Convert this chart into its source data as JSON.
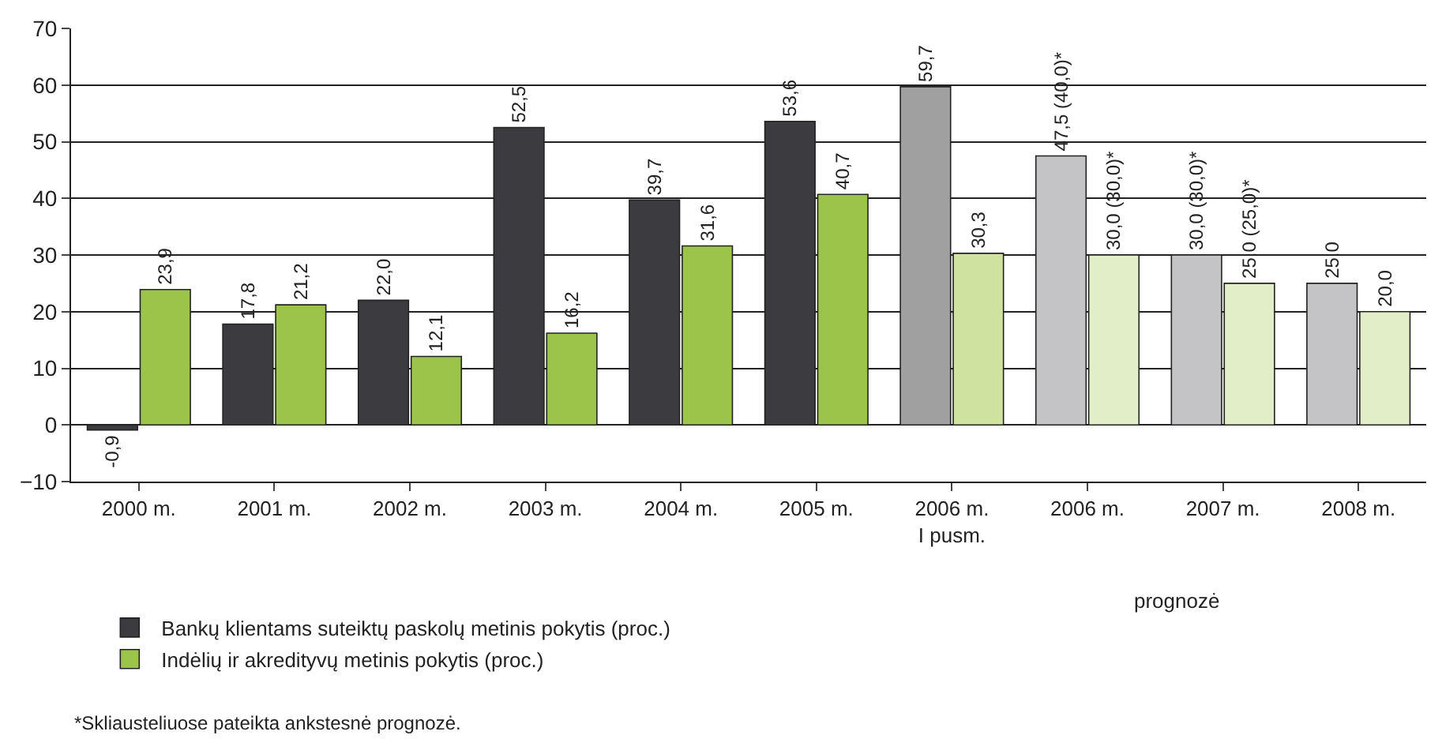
{
  "chart_data": {
    "type": "bar",
    "categories": [
      "2000 m.",
      "2001 m.",
      "2002 m.",
      "2003 m.",
      "2004 m.",
      "2005 m.",
      "2006 m.\nI pusm.",
      "2006 m.",
      "2007 m.",
      "2008 m."
    ],
    "series": [
      {
        "name": "Bankų klientams suteiktų paskolų metinis pokytis (proc.)",
        "colors": [
          "#3c3c40",
          "#3c3c40",
          "#3c3c40",
          "#3c3c40",
          "#3c3c40",
          "#3c3c40",
          "#a0a0a0",
          "#c4c4c6",
          "#c4c4c6",
          "#c4c4c6"
        ],
        "values": [
          -0.9,
          17.8,
          22.0,
          52.5,
          39.7,
          53.6,
          59.7,
          47.5,
          30.0,
          25.0
        ],
        "value_labels": [
          "-0,9",
          "17,8",
          "22,0",
          "52,5",
          "39,7",
          "53,6",
          "59,7",
          "47,5 (40,0)*",
          "30,0 (30,0)*",
          "25,0"
        ]
      },
      {
        "name": "Indėlių ir akredityvų metinis pokytis (proc.)",
        "colors": [
          "#9cc34a",
          "#9cc34a",
          "#9cc34a",
          "#9cc34a",
          "#9cc34a",
          "#9cc34a",
          "#cfe2a0",
          "#e2eec8",
          "#e2eec8",
          "#e2eec8"
        ],
        "values": [
          23.9,
          21.2,
          12.1,
          16.2,
          31.6,
          40.7,
          30.3,
          30.0,
          25.0,
          20.0
        ],
        "value_labels": [
          "23,9",
          "21,2",
          "12,1",
          "16,2",
          "31,6",
          "40,7",
          "30,3",
          "30,0 (30,0)*",
          "25,0 (25,0)*",
          "20,0"
        ]
      }
    ],
    "ylim": [
      -10,
      70
    ],
    "yticks": [
      {
        "value": -10,
        "label": "−10"
      },
      0,
      10,
      20,
      30,
      40,
      50,
      60,
      70
    ],
    "grid": "y",
    "legend": "bottom left",
    "annotations": [
      "prognozė",
      "*Skliausteliuose pateikta ankstesnė prognozė."
    ]
  }
}
